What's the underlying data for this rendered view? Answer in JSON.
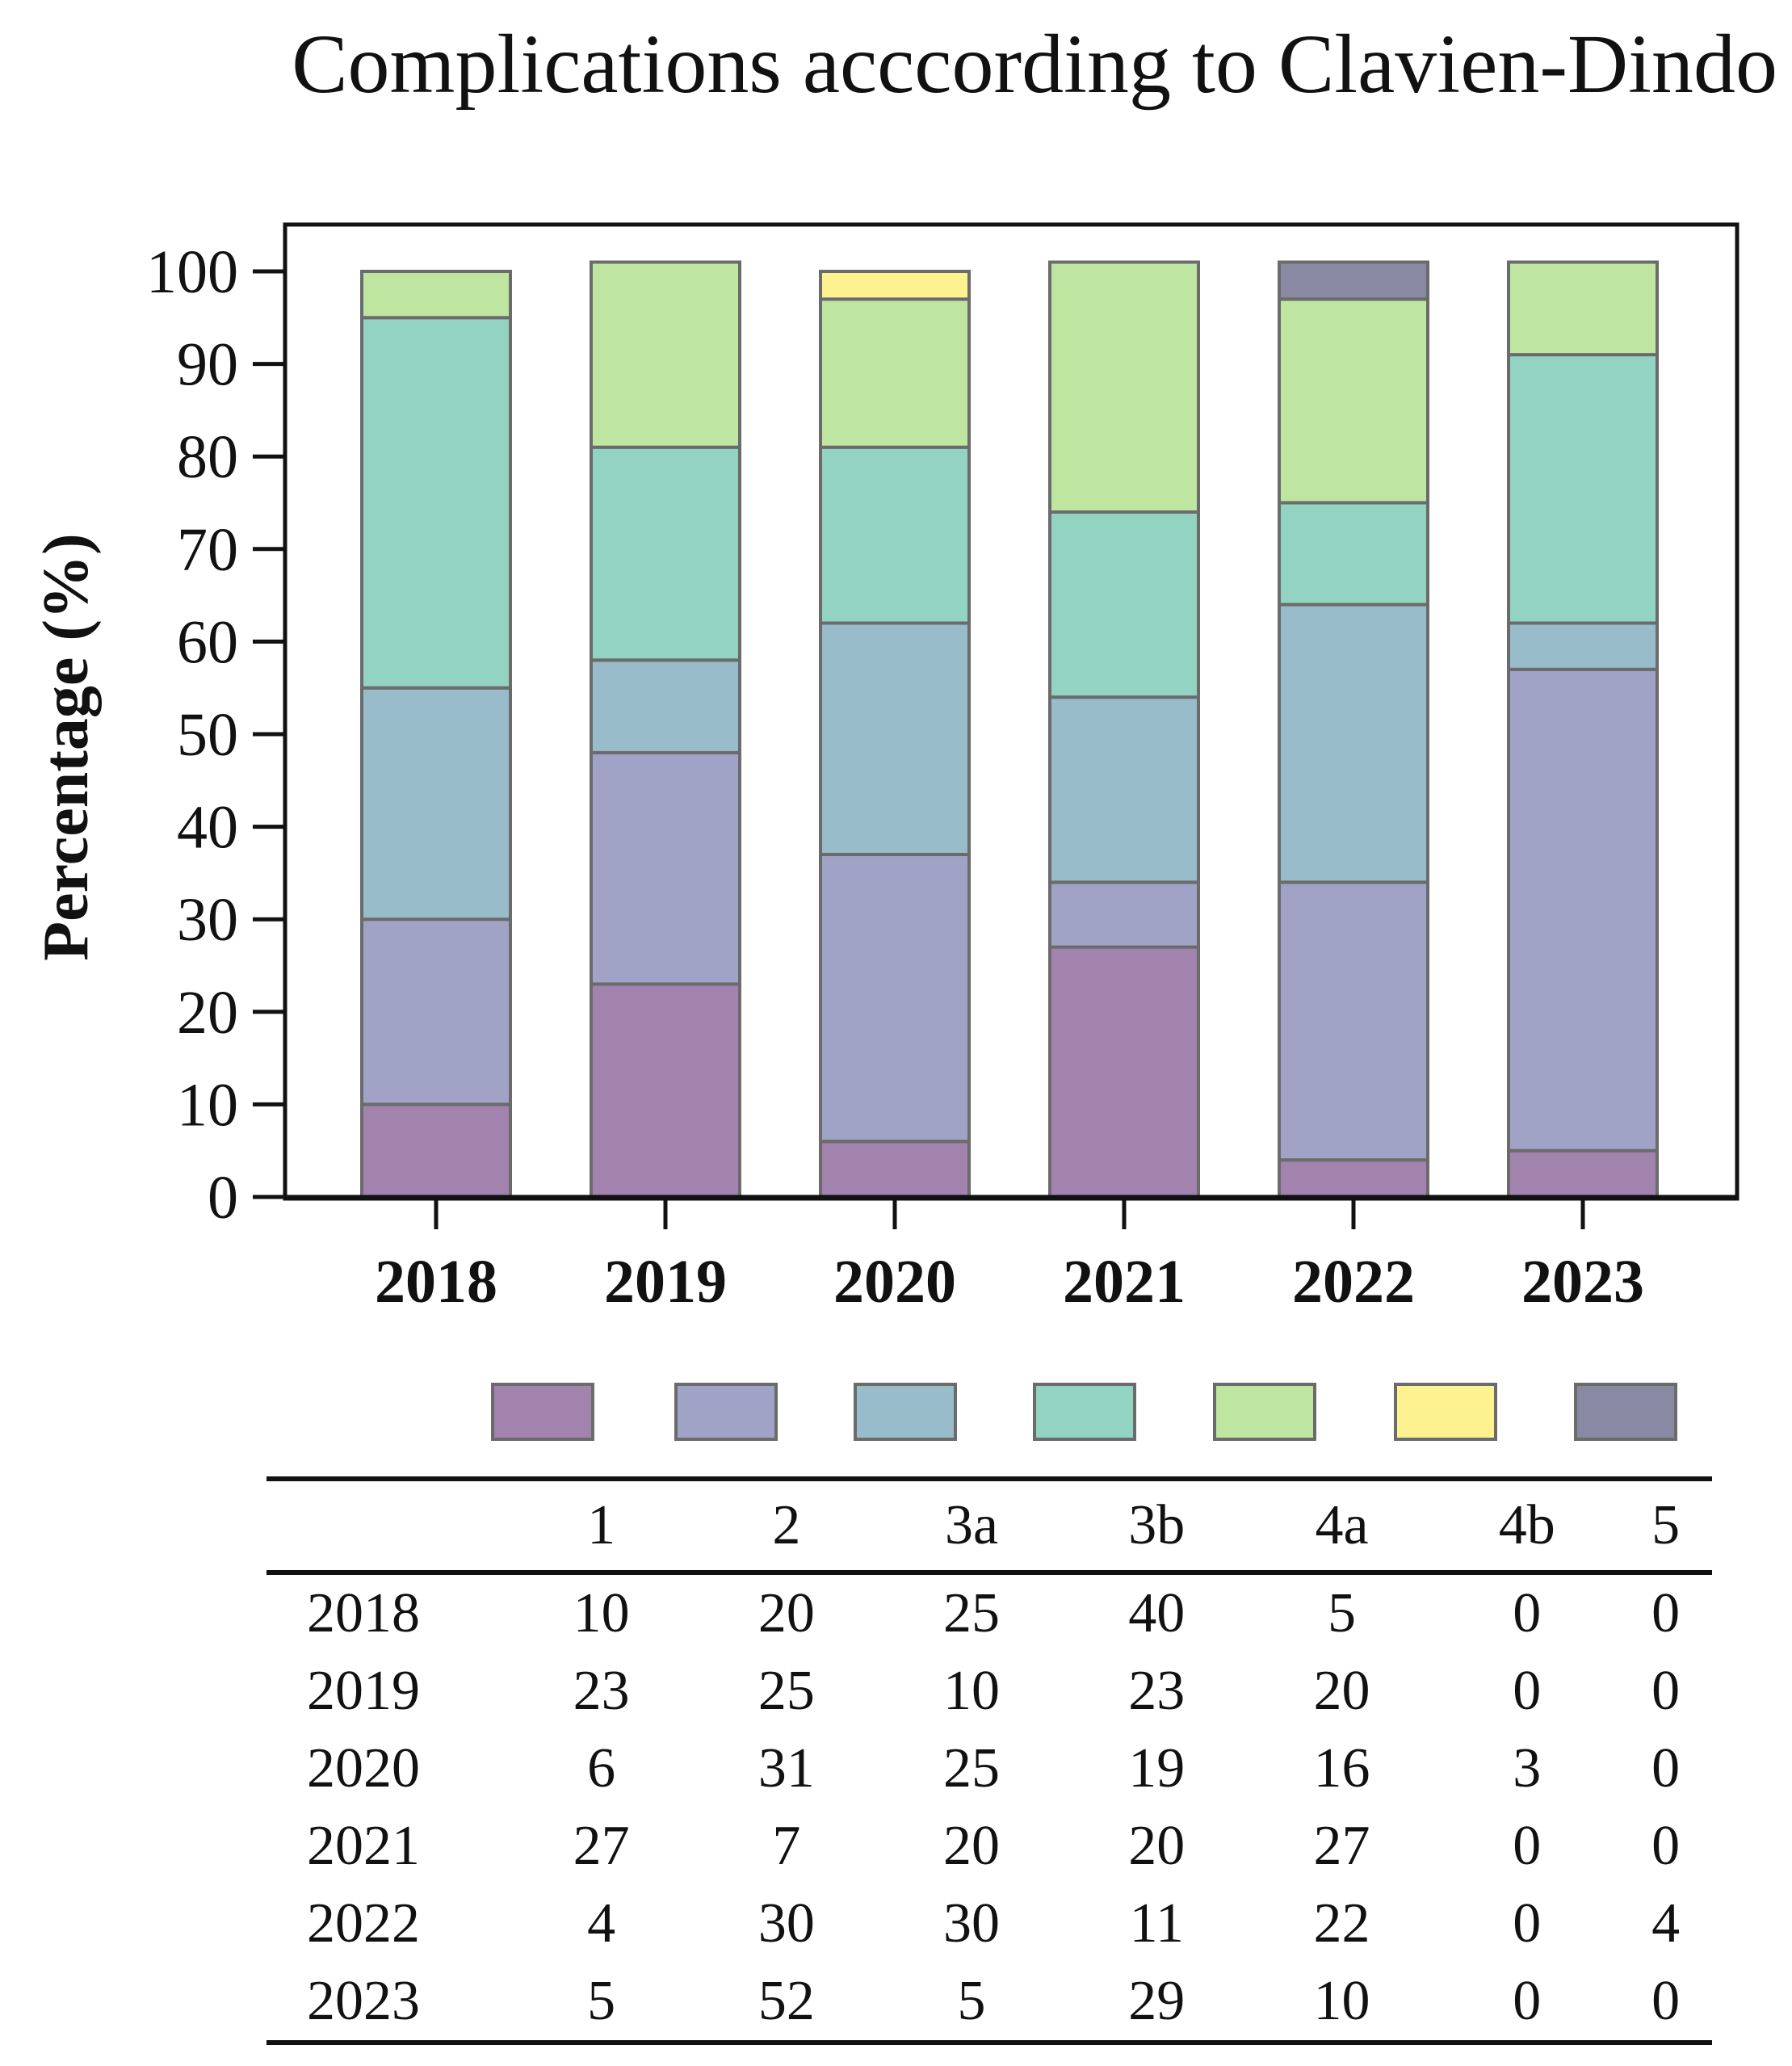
{
  "chart_data": {
    "type": "bar",
    "stacked": true,
    "title": "Complications acccording to Clavien-Dindo",
    "ylabel": "Percentage (%)",
    "xlabel": "",
    "ylim": [
      0,
      100
    ],
    "yticks": [
      0,
      10,
      20,
      30,
      40,
      50,
      60,
      70,
      80,
      90,
      100
    ],
    "categories": [
      "2018",
      "2019",
      "2020",
      "2021",
      "2022",
      "2023"
    ],
    "series": [
      {
        "name": "1",
        "color": "#a183ad",
        "values": [
          10,
          23,
          6,
          27,
          4,
          5
        ]
      },
      {
        "name": "2",
        "color": "#a1a3c6",
        "values": [
          20,
          25,
          31,
          7,
          30,
          52
        ]
      },
      {
        "name": "3a",
        "color": "#98bcc9",
        "values": [
          25,
          10,
          25,
          20,
          30,
          5
        ]
      },
      {
        "name": "3b",
        "color": "#92d4c1",
        "values": [
          40,
          23,
          19,
          20,
          11,
          29
        ]
      },
      {
        "name": "4a",
        "color": "#bfe6a1",
        "values": [
          5,
          20,
          16,
          27,
          22,
          10
        ]
      },
      {
        "name": "4b",
        "color": "#fcf290",
        "values": [
          0,
          0,
          3,
          0,
          0,
          0
        ]
      },
      {
        "name": "5",
        "color": "#8a89a3",
        "values": [
          0,
          0,
          0,
          0,
          4,
          0
        ]
      }
    ],
    "grid": false,
    "legend": "bottom"
  }
}
